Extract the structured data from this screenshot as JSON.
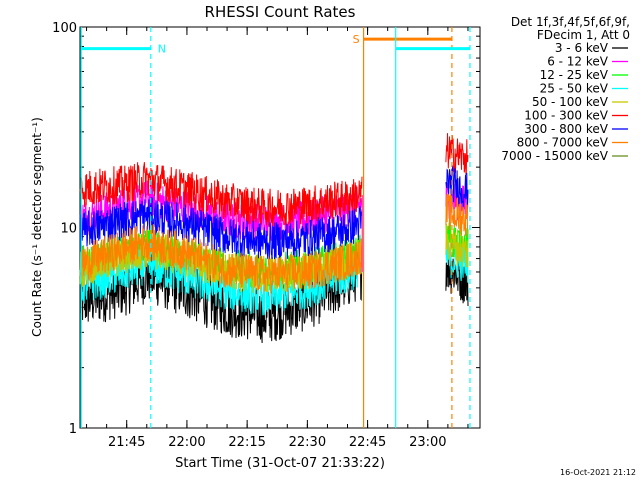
{
  "chart_data": {
    "type": "line",
    "title": "RHESSI Count Rates",
    "xlabel": "Start Time (31-Oct-07 21:33:22)",
    "ylabel": "Count Rate (s⁻¹ detector segment⁻¹)",
    "yscale": "log",
    "ylim": [
      1,
      100
    ],
    "xlim": [
      "21:33:22",
      "23:13:00"
    ],
    "x_ticks": [
      "21:45",
      "22:00",
      "22:15",
      "22:30",
      "22:45",
      "23:00"
    ],
    "y_ticks": [
      "1",
      "10",
      "100"
    ],
    "legend_header": [
      "Det 1f,3f,4f,5f,6f,9f,",
      "FDecim 1, Att 0"
    ],
    "legend_position": "right",
    "series": [
      {
        "name": "3 - 6 keV",
        "color": "#000000",
        "x": [
          "21:33",
          "21:45",
          "21:50",
          "22:00",
          "22:10",
          "22:20",
          "22:30",
          "22:40",
          "22:43",
          "23:05",
          "23:10"
        ],
        "values": [
          4.2,
          5.0,
          5.8,
          4.8,
          3.9,
          3.6,
          4.2,
          5.4,
          6.0,
          6.5,
          5.5
        ]
      },
      {
        "name": "6 - 12 keV",
        "color": "#ff00ff",
        "x": [
          "21:33",
          "21:45",
          "21:50",
          "22:00",
          "22:10",
          "22:20",
          "22:30",
          "22:40",
          "22:43",
          "23:05",
          "23:10"
        ],
        "values": [
          11,
          13,
          14,
          12.5,
          11,
          10.5,
          11,
          12.5,
          13,
          14,
          13
        ]
      },
      {
        "name": "12 - 25 keV",
        "color": "#00ff00",
        "x": [
          "21:33",
          "21:45",
          "21:50",
          "22:00",
          "22:10",
          "22:20",
          "22:30",
          "22:40",
          "22:43",
          "23:05",
          "23:10"
        ],
        "values": [
          6.5,
          7.5,
          8.0,
          7.2,
          6.3,
          6.0,
          6.3,
          7.0,
          7.5,
          9.0,
          8.0
        ]
      },
      {
        "name": "25 - 50 keV",
        "color": "#00ffff",
        "x": [
          "21:33",
          "21:45",
          "21:50",
          "22:00",
          "22:10",
          "22:20",
          "22:30",
          "22:40",
          "22:43",
          "23:05",
          "23:10"
        ],
        "values": [
          5.0,
          6.0,
          6.5,
          5.6,
          4.8,
          4.5,
          4.9,
          5.8,
          6.3,
          7.0,
          6.5
        ]
      },
      {
        "name": "50 - 100 keV",
        "color": "#c8c800",
        "x": [
          "21:33",
          "21:45",
          "21:50",
          "22:00",
          "22:10",
          "22:20",
          "22:30",
          "22:40",
          "22:43",
          "23:05",
          "23:10"
        ],
        "values": [
          6.2,
          7.2,
          7.8,
          7.0,
          6.0,
          5.8,
          6.0,
          6.8,
          7.2,
          8.5,
          7.5
        ]
      },
      {
        "name": "100 - 300 keV",
        "color": "#ff0000",
        "x": [
          "21:33",
          "21:45",
          "21:50",
          "22:00",
          "22:10",
          "22:20",
          "22:30",
          "22:40",
          "22:43",
          "23:05",
          "23:10"
        ],
        "values": [
          15.5,
          16.5,
          17.5,
          15.5,
          13.5,
          12.5,
          13,
          14,
          14.5,
          24,
          22
        ]
      },
      {
        "name": "300 - 800 keV",
        "color": "#0000ff",
        "x": [
          "21:33",
          "21:45",
          "21:50",
          "22:00",
          "22:10",
          "22:20",
          "22:30",
          "22:40",
          "22:43",
          "23:05",
          "23:10"
        ],
        "values": [
          9.5,
          11,
          11.5,
          10.5,
          9.0,
          8.5,
          8.8,
          9.8,
          10.5,
          17,
          15
        ]
      },
      {
        "name": "800 - 7000 keV",
        "color": "#ff8000",
        "x": [
          "21:33",
          "21:45",
          "21:50",
          "22:00",
          "22:10",
          "22:20",
          "22:30",
          "22:40",
          "22:43",
          "23:05",
          "23:10"
        ],
        "values": [
          6.5,
          8.0,
          8.5,
          7.5,
          6.2,
          5.8,
          6.0,
          6.8,
          7.2,
          12,
          11
        ]
      },
      {
        "name": "7000 - 15000 keV",
        "color": "#6b8e23",
        "x": [],
        "values": []
      }
    ],
    "annotations": [
      {
        "type": "vline",
        "x": "21:33:40",
        "color": "#00ffff",
        "style": "solid"
      },
      {
        "type": "vline",
        "x": "21:51:00",
        "color": "#00ffff",
        "style": "dashed"
      },
      {
        "type": "hbar",
        "x0": "21:33:40",
        "x1": "21:51:00",
        "y": 78,
        "color": "#00ffff",
        "label": "N"
      },
      {
        "type": "vline",
        "x": "22:44:00",
        "color": "#ff8000",
        "style": "solid"
      },
      {
        "type": "vline",
        "x": "23:06:00",
        "color": "#ff8000",
        "style": "dashed"
      },
      {
        "type": "hbar",
        "x0": "22:44:00",
        "x1": "23:06:00",
        "y": 87,
        "color": "#ff8000",
        "label": "S"
      },
      {
        "type": "vline",
        "x": "22:52:00",
        "color": "#00ffff",
        "style": "solid"
      },
      {
        "type": "vline",
        "x": "23:10:30",
        "color": "#00ffff",
        "style": "dashed"
      },
      {
        "type": "hbar",
        "x0": "22:52:00",
        "x1": "23:10:30",
        "y": 78,
        "color": "#00ffff",
        "label": ""
      }
    ],
    "footer": "16-Oct-2021 21:12"
  }
}
